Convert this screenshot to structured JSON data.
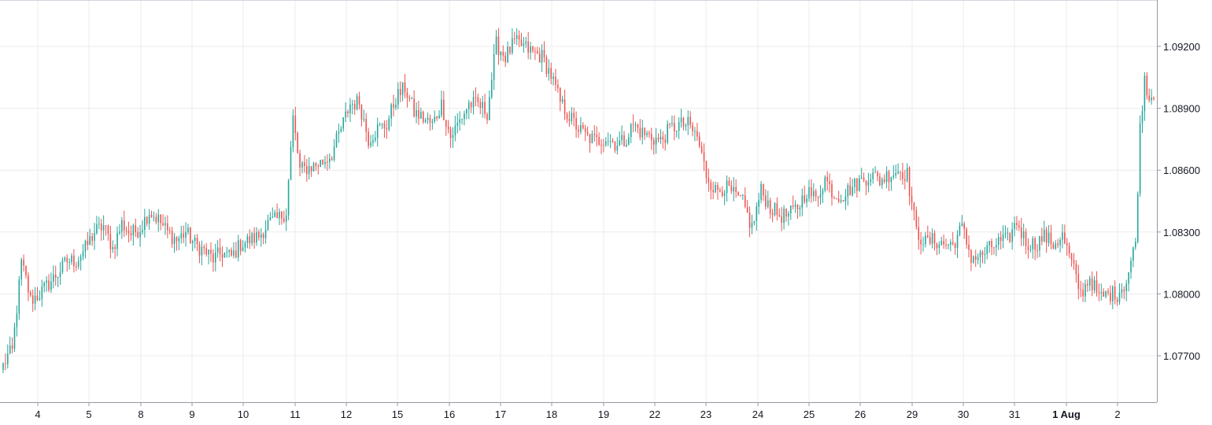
{
  "chart_data": {
    "type": "candlestick",
    "title": "",
    "xlabel": "",
    "ylabel": "",
    "ylim": [
      1.07475,
      1.09425
    ],
    "grid": true,
    "up_color": "#26a69a",
    "down_color": "#ef5350",
    "x_ticks": [
      {
        "label": "4",
        "bold": false
      },
      {
        "label": "5",
        "bold": false
      },
      {
        "label": "8",
        "bold": false
      },
      {
        "label": "9",
        "bold": false
      },
      {
        "label": "10",
        "bold": false
      },
      {
        "label": "11",
        "bold": false
      },
      {
        "label": "12",
        "bold": false
      },
      {
        "label": "15",
        "bold": false
      },
      {
        "label": "16",
        "bold": false
      },
      {
        "label": "17",
        "bold": false
      },
      {
        "label": "18",
        "bold": false
      },
      {
        "label": "19",
        "bold": false
      },
      {
        "label": "22",
        "bold": false
      },
      {
        "label": "23",
        "bold": false
      },
      {
        "label": "24",
        "bold": false
      },
      {
        "label": "25",
        "bold": false
      },
      {
        "label": "26",
        "bold": false
      },
      {
        "label": "29",
        "bold": false
      },
      {
        "label": "30",
        "bold": false
      },
      {
        "label": "31",
        "bold": false
      },
      {
        "label": "1 Aug",
        "bold": true
      },
      {
        "label": "2",
        "bold": false
      }
    ],
    "y_ticks": [
      "1.07700",
      "1.08000",
      "1.08300",
      "1.08600",
      "1.08900",
      "1.09200"
    ],
    "close_anchors": [
      [
        0,
        1.0765
      ],
      [
        2,
        1.077
      ],
      [
        4,
        1.0772
      ],
      [
        6,
        1.0793
      ],
      [
        8,
        1.0815
      ],
      [
        10,
        1.0807
      ],
      [
        12,
        1.0797
      ],
      [
        16,
        1.08
      ],
      [
        20,
        1.0805
      ],
      [
        24,
        1.081
      ],
      [
        28,
        1.0816
      ],
      [
        32,
        1.0816
      ],
      [
        36,
        1.0822
      ],
      [
        40,
        1.083
      ],
      [
        44,
        1.0833
      ],
      [
        48,
        1.0822
      ],
      [
        52,
        1.0834
      ],
      [
        56,
        1.0829
      ],
      [
        60,
        1.0832
      ],
      [
        64,
        1.084
      ],
      [
        68,
        1.0836
      ],
      [
        72,
        1.083
      ],
      [
        76,
        1.0826
      ],
      [
        80,
        1.083
      ],
      [
        84,
        1.0824
      ],
      [
        88,
        1.0821
      ],
      [
        92,
        1.0817
      ],
      [
        96,
        1.082
      ],
      [
        100,
        1.0818
      ],
      [
        104,
        1.0824
      ],
      [
        108,
        1.0826
      ],
      [
        112,
        1.0828
      ],
      [
        116,
        1.0834
      ],
      [
        120,
        1.0836
      ],
      [
        124,
        1.084
      ],
      [
        127,
        1.0885
      ],
      [
        130,
        1.086
      ],
      [
        136,
        1.0862
      ],
      [
        140,
        1.0864
      ],
      [
        144,
        1.0868
      ],
      [
        148,
        1.088
      ],
      [
        152,
        1.0892
      ],
      [
        156,
        1.0893
      ],
      [
        160,
        1.0875
      ],
      [
        164,
        1.088
      ],
      [
        168,
        1.0882
      ],
      [
        172,
        1.0895
      ],
      [
        176,
        1.09
      ],
      [
        180,
        1.0888
      ],
      [
        184,
        1.0885
      ],
      [
        188,
        1.0882
      ],
      [
        192,
        1.0892
      ],
      [
        196,
        1.0876
      ],
      [
        200,
        1.0884
      ],
      [
        204,
        1.0892
      ],
      [
        208,
        1.0892
      ],
      [
        212,
        1.0888
      ],
      [
        216,
        1.0921
      ],
      [
        220,
        1.0915
      ],
      [
        224,
        1.0922
      ],
      [
        228,
        1.092
      ],
      [
        232,
        1.0917
      ],
      [
        236,
        1.0915
      ],
      [
        240,
        1.0906
      ],
      [
        244,
        1.0893
      ],
      [
        248,
        1.0886
      ],
      [
        252,
        1.088
      ],
      [
        256,
        1.0876
      ],
      [
        260,
        1.0874
      ],
      [
        264,
        1.0876
      ],
      [
        268,
        1.0873
      ],
      [
        272,
        1.0874
      ],
      [
        276,
        1.0882
      ],
      [
        280,
        1.0878
      ],
      [
        284,
        1.0876
      ],
      [
        288,
        1.0874
      ],
      [
        292,
        1.088
      ],
      [
        296,
        1.0882
      ],
      [
        300,
        1.0882
      ],
      [
        304,
        1.0876
      ],
      [
        308,
        1.0858
      ],
      [
        312,
        1.085
      ],
      [
        316,
        1.0852
      ],
      [
        320,
        1.0848
      ],
      [
        324,
        1.0844
      ],
      [
        328,
        1.0832
      ],
      [
        332,
        1.085
      ],
      [
        336,
        1.0842
      ],
      [
        340,
        1.0838
      ],
      [
        344,
        1.0838
      ],
      [
        348,
        1.0842
      ],
      [
        352,
        1.085
      ],
      [
        356,
        1.0846
      ],
      [
        360,
        1.0856
      ],
      [
        364,
        1.0848
      ],
      [
        368,
        1.0848
      ],
      [
        372,
        1.0852
      ],
      [
        376,
        1.0855
      ],
      [
        380,
        1.0858
      ],
      [
        384,
        1.0855
      ],
      [
        388,
        1.0858
      ],
      [
        392,
        1.086
      ],
      [
        396,
        1.0858
      ],
      [
        400,
        1.083
      ],
      [
        404,
        1.0825
      ],
      [
        408,
        1.0826
      ],
      [
        412,
        1.0824
      ],
      [
        416,
        1.0824
      ],
      [
        420,
        1.0832
      ],
      [
        424,
        1.0818
      ],
      [
        428,
        1.0818
      ],
      [
        432,
        1.0822
      ],
      [
        436,
        1.0825
      ],
      [
        440,
        1.0826
      ],
      [
        444,
        1.0835
      ],
      [
        448,
        1.0825
      ],
      [
        452,
        1.0824
      ],
      [
        456,
        1.0828
      ],
      [
        460,
        1.0824
      ],
      [
        464,
        1.0828
      ],
      [
        468,
        1.0815
      ],
      [
        472,
        1.08
      ],
      [
        476,
        1.0808
      ],
      [
        480,
        1.0798
      ],
      [
        484,
        1.08
      ],
      [
        488,
        1.08
      ],
      [
        492,
        1.0806
      ],
      [
        496,
        1.0825
      ],
      [
        498,
        1.088
      ],
      [
        500,
        1.0905
      ],
      [
        502,
        1.0895
      ],
      [
        504,
        1.0898
      ]
    ]
  }
}
